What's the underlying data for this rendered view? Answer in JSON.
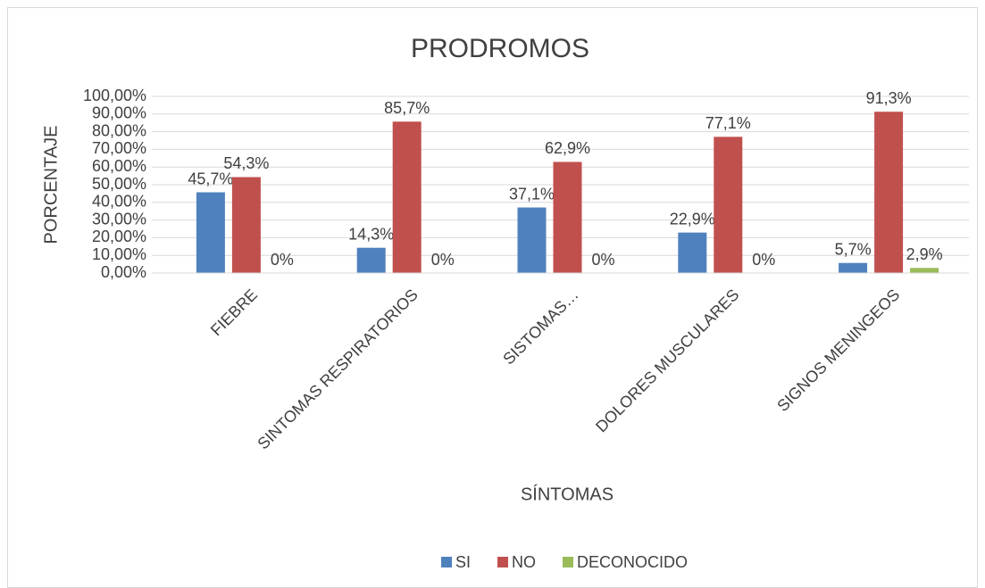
{
  "chart_data": {
    "type": "bar",
    "title": "PRODROMOS",
    "x_label": "SÍNTOMAS",
    "y_label": "PORCENTAJE",
    "categories": [
      "FIEBRE",
      "SINTOMAS RESPIRATORIOS",
      "SISTOMAS…",
      "DOLORES MUSCULARES",
      "SIGNOS MENINGEOS"
    ],
    "series": [
      {
        "name": "SI",
        "color": "#4f81bd",
        "values": [
          45.7,
          14.3,
          37.1,
          22.9,
          5.7
        ],
        "value_labels": [
          "45,7%",
          "14,3%",
          "37,1%",
          "22,9%",
          "5,7%"
        ]
      },
      {
        "name": "NO",
        "color": "#c0504d",
        "values": [
          54.3,
          85.7,
          62.9,
          77.1,
          91.3
        ],
        "value_labels": [
          "54,3%",
          "85,7%",
          "62,9%",
          "77,1%",
          "91,3%"
        ]
      },
      {
        "name": "DECONOCIDO",
        "color": "#9bbb59",
        "values": [
          0,
          0,
          0,
          0,
          2.9
        ],
        "value_labels": [
          "0%",
          "0%",
          "0%",
          "0%",
          "2,9%"
        ]
      }
    ],
    "ylim": [
      0,
      100
    ],
    "yticks": [
      {
        "value": 0,
        "label": "0,00%"
      },
      {
        "value": 10,
        "label": "10,00%"
      },
      {
        "value": 20,
        "label": "20,00%"
      },
      {
        "value": 30,
        "label": "30,00%"
      },
      {
        "value": 40,
        "label": "40,00%"
      },
      {
        "value": 50,
        "label": "50,00%"
      },
      {
        "value": 60,
        "label": "60,00%"
      },
      {
        "value": 70,
        "label": "70,00%"
      },
      {
        "value": 80,
        "label": "80,00%"
      },
      {
        "value": 90,
        "label": "90,00%"
      },
      {
        "value": 100,
        "label": "100,00%"
      }
    ],
    "grid": true,
    "legend": "bottom"
  }
}
